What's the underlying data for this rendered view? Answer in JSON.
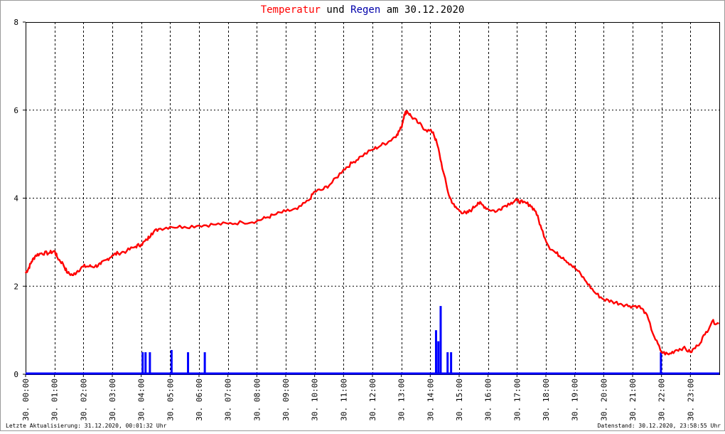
{
  "chart_data": {
    "type": "line",
    "title_parts": [
      {
        "text": "Temperatur",
        "color": "#ff0000"
      },
      {
        "text": " und ",
        "color": "#000000"
      },
      {
        "text": "Regen",
        "color": "#0000aa"
      },
      {
        "text": " am 30.12.2020",
        "color": "#000000"
      }
    ],
    "ylim": [
      0,
      8
    ],
    "y_ticks": [
      "0",
      "2",
      "4",
      "6",
      "8"
    ],
    "x_ticks": [
      {
        "label": "30. 00:00",
        "hour": 0
      },
      {
        "label": "30. 01:00",
        "hour": 1
      },
      {
        "label": "30. 02:00",
        "hour": 2
      },
      {
        "label": "30. 03:00",
        "hour": 3
      },
      {
        "label": "30. 04:00",
        "hour": 4
      },
      {
        "label": "30. 05:00",
        "hour": 5
      },
      {
        "label": "30. 06:00",
        "hour": 6
      },
      {
        "label": "30. 07:00",
        "hour": 7
      },
      {
        "label": "30. 08:00",
        "hour": 8
      },
      {
        "label": "30. 09:00",
        "hour": 9
      },
      {
        "label": "30. 10:00",
        "hour": 10
      },
      {
        "label": "30. 11:00",
        "hour": 11
      },
      {
        "label": "30. 12:00",
        "hour": 12
      },
      {
        "label": "30. 13:00",
        "hour": 13
      },
      {
        "label": "30. 14:00",
        "hour": 14
      },
      {
        "label": "30. 15:00",
        "hour": 15
      },
      {
        "label": "30. 16:00",
        "hour": 16
      },
      {
        "label": "30. 17:00",
        "hour": 17
      },
      {
        "label": "30. 18:00",
        "hour": 18
      },
      {
        "label": "30. 19:00",
        "hour": 19
      },
      {
        "label": "30. 20:00",
        "hour": 20
      },
      {
        "label": "30. 21:00",
        "hour": 21
      },
      {
        "label": "30. 22:00",
        "hour": 22
      },
      {
        "label": "30. 23:00",
        "hour": 23
      }
    ],
    "grid": true,
    "series": [
      {
        "name": "Temperatur",
        "color": "#ff0000",
        "points": [
          [
            0.0,
            2.3
          ],
          [
            0.1,
            2.4
          ],
          [
            0.2,
            2.55
          ],
          [
            0.35,
            2.7
          ],
          [
            0.55,
            2.75
          ],
          [
            0.8,
            2.75
          ],
          [
            1.0,
            2.8
          ],
          [
            1.1,
            2.65
          ],
          [
            1.3,
            2.5
          ],
          [
            1.45,
            2.3
          ],
          [
            1.65,
            2.25
          ],
          [
            1.8,
            2.35
          ],
          [
            2.0,
            2.45
          ],
          [
            2.2,
            2.45
          ],
          [
            2.4,
            2.45
          ],
          [
            2.6,
            2.5
          ],
          [
            2.8,
            2.6
          ],
          [
            3.0,
            2.7
          ],
          [
            3.2,
            2.75
          ],
          [
            3.5,
            2.8
          ],
          [
            3.8,
            2.9
          ],
          [
            4.0,
            2.95
          ],
          [
            4.2,
            3.05
          ],
          [
            4.35,
            3.2
          ],
          [
            4.6,
            3.3
          ],
          [
            5.0,
            3.35
          ],
          [
            5.5,
            3.35
          ],
          [
            6.0,
            3.38
          ],
          [
            6.5,
            3.4
          ],
          [
            7.0,
            3.42
          ],
          [
            7.5,
            3.45
          ],
          [
            8.0,
            3.48
          ],
          [
            8.3,
            3.55
          ],
          [
            8.6,
            3.62
          ],
          [
            9.0,
            3.7
          ],
          [
            9.4,
            3.75
          ],
          [
            9.8,
            3.95
          ],
          [
            10.0,
            4.15
          ],
          [
            10.3,
            4.2
          ],
          [
            10.6,
            4.35
          ],
          [
            11.0,
            4.65
          ],
          [
            11.3,
            4.8
          ],
          [
            11.6,
            4.95
          ],
          [
            12.0,
            5.1
          ],
          [
            12.3,
            5.2
          ],
          [
            12.6,
            5.3
          ],
          [
            12.85,
            5.45
          ],
          [
            13.0,
            5.6
          ],
          [
            13.1,
            5.9
          ],
          [
            13.2,
            5.98
          ],
          [
            13.35,
            5.85
          ],
          [
            13.6,
            5.7
          ],
          [
            13.85,
            5.55
          ],
          [
            14.1,
            5.5
          ],
          [
            14.25,
            5.2
          ],
          [
            14.45,
            4.6
          ],
          [
            14.65,
            4.05
          ],
          [
            14.85,
            3.8
          ],
          [
            15.05,
            3.7
          ],
          [
            15.25,
            3.65
          ],
          [
            15.45,
            3.75
          ],
          [
            15.65,
            3.9
          ],
          [
            15.8,
            3.85
          ],
          [
            16.0,
            3.75
          ],
          [
            16.3,
            3.7
          ],
          [
            16.5,
            3.8
          ],
          [
            16.8,
            3.9
          ],
          [
            17.0,
            3.95
          ],
          [
            17.2,
            3.9
          ],
          [
            17.45,
            3.85
          ],
          [
            17.65,
            3.7
          ],
          [
            17.85,
            3.3
          ],
          [
            18.1,
            2.9
          ],
          [
            18.35,
            2.75
          ],
          [
            18.6,
            2.65
          ],
          [
            18.85,
            2.5
          ],
          [
            19.1,
            2.35
          ],
          [
            19.4,
            2.1
          ],
          [
            19.7,
            1.85
          ],
          [
            20.0,
            1.7
          ],
          [
            20.3,
            1.65
          ],
          [
            20.6,
            1.6
          ],
          [
            20.9,
            1.55
          ],
          [
            21.2,
            1.55
          ],
          [
            21.45,
            1.4
          ],
          [
            21.75,
            0.85
          ],
          [
            22.0,
            0.5
          ],
          [
            22.25,
            0.45
          ],
          [
            22.5,
            0.55
          ],
          [
            22.75,
            0.6
          ],
          [
            23.0,
            0.5
          ],
          [
            23.25,
            0.65
          ],
          [
            23.5,
            0.9
          ],
          [
            23.75,
            1.2
          ],
          [
            23.98,
            1.15
          ]
        ]
      },
      {
        "name": "Regen",
        "color": "#0000ff",
        "bars": [
          [
            4.05,
            0.5
          ],
          [
            4.15,
            0.5
          ],
          [
            4.3,
            0.5
          ],
          [
            5.05,
            0.55
          ],
          [
            5.62,
            0.5
          ],
          [
            6.2,
            0.5
          ],
          [
            14.2,
            1.0
          ],
          [
            14.28,
            0.75
          ],
          [
            14.36,
            1.55
          ],
          [
            14.6,
            0.5
          ],
          [
            14.72,
            0.5
          ],
          [
            21.98,
            0.5
          ]
        ]
      }
    ]
  },
  "footer": {
    "left": "Letzte Aktualisierung: 31.12.2020, 00:01:32 Uhr",
    "right": "Datenstand: 30.12.2020, 23:58:55 Uhr"
  }
}
